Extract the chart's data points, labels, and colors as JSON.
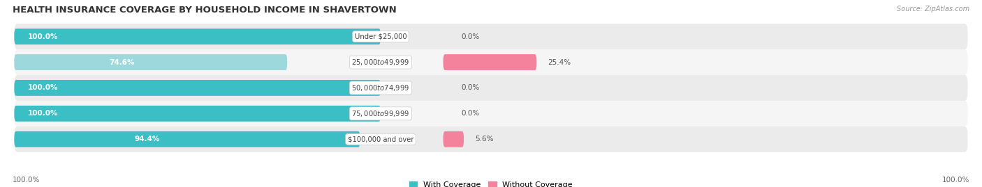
{
  "title": "HEALTH INSURANCE COVERAGE BY HOUSEHOLD INCOME IN SHAVERTOWN",
  "source": "Source: ZipAtlas.com",
  "categories": [
    "Under $25,000",
    "$25,000 to $49,999",
    "$50,000 to $74,999",
    "$75,000 to $99,999",
    "$100,000 and over"
  ],
  "with_coverage": [
    100.0,
    74.6,
    100.0,
    100.0,
    94.4
  ],
  "without_coverage": [
    0.0,
    25.4,
    0.0,
    0.0,
    5.6
  ],
  "color_with": "#3BBFC4",
  "color_without": "#F4829C",
  "color_with_light": "#9DD8DC",
  "bg_row_odd": "#ebebeb",
  "bg_row_even": "#f5f5f5",
  "fig_bg": "#ffffff",
  "title_fontsize": 9.5,
  "label_fontsize": 7.5,
  "legend_fontsize": 8,
  "source_fontsize": 7
}
